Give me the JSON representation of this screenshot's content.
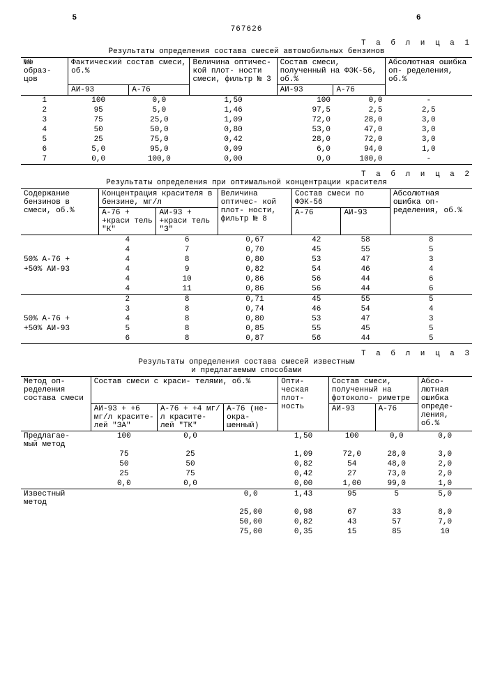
{
  "pageLeft": "5",
  "pageCenter": "767626",
  "pageRight": "6",
  "table1": {
    "label": "Т а б л и ц а  1",
    "caption": "Результаты определения состава смесей автомобильных бензинов",
    "head": {
      "c1": "№№\nобраз-\nцов",
      "c2": "Фактический состав\nсмеси, об.%",
      "c2a": "АИ-93",
      "c2b": "А-76",
      "c3": "Величина\nоптичес-\nкой плот-\nности\nсмеси,\nфильтр № 3",
      "c4": "Состав смеси,\nполученный на\nФЭК-56, об.%",
      "c4a": "АИ-93",
      "c4b": "А-76",
      "c5": "Абсолютная\nошибка оп-\nределения,\nоб.%"
    },
    "rows": [
      [
        "1",
        "100",
        "0,0",
        "1,50",
        "100",
        "0,0",
        "-"
      ],
      [
        "2",
        "95",
        "5,0",
        "1,46",
        "97,5",
        "2,5",
        "2,5"
      ],
      [
        "3",
        "75",
        "25,0",
        "1,09",
        "72,0",
        "28,0",
        "3,0"
      ],
      [
        "4",
        "50",
        "50,0",
        "0,80",
        "53,0",
        "47,0",
        "3,0"
      ],
      [
        "5",
        "25",
        "75,0",
        "0,42",
        "28,0",
        "72,0",
        "3,0"
      ],
      [
        "6",
        "5,0",
        "95,0",
        "0,09",
        "6,0",
        "94,0",
        "1,0"
      ],
      [
        "7",
        "0,0",
        "100,0",
        "0,00",
        "0,0",
        "100,0",
        "-"
      ]
    ]
  },
  "table2": {
    "label": "Т а б л и ц а  2",
    "caption": "Результаты определения при оптимальной концентрации красителя",
    "head": {
      "c1": "Содержание\nбензинов в\nсмеси,\nоб.%",
      "c2": "Концентрация\nкрасителя в\nбензине, мг/л",
      "c2a": "А-76 +\n+краси\nтель\n\"К\"",
      "c2b": "АИ-93 +\n+краси\nтель\n\"З\"",
      "c3": "Величина\nоптичес-\nкой плот-\nности,\nфильтр\n№ 8",
      "c4": "Состав смеси\nпо ФЭК-56",
      "c4a": "А-76",
      "c4b": "АИ-93",
      "c5": "Абсолютная\nошибка оп-\nределения,\nоб.%"
    },
    "groupA_label_1": "50% А-76 +",
    "groupA_label_2": "+50% АИ-93",
    "rowsA": [
      [
        "4",
        "6",
        "0,67",
        "42",
        "58",
        "8"
      ],
      [
        "4",
        "7",
        "0,70",
        "45",
        "55",
        "5"
      ],
      [
        "4",
        "8",
        "0,80",
        "53",
        "47",
        "3"
      ],
      [
        "4",
        "9",
        "0,82",
        "54",
        "46",
        "4"
      ],
      [
        "4",
        "10",
        "0,86",
        "56",
        "44",
        "6"
      ],
      [
        "4",
        "11",
        "0,86",
        "56",
        "44",
        "6"
      ]
    ],
    "rowsB": [
      [
        "2",
        "8",
        "0,71",
        "45",
        "55",
        "5"
      ],
      [
        "3",
        "8",
        "0,74",
        "46",
        "54",
        "4"
      ],
      [
        "4",
        "8",
        "0,80",
        "53",
        "47",
        "3"
      ],
      [
        "5",
        "8",
        "0,85",
        "55",
        "45",
        "5"
      ],
      [
        "6",
        "8",
        "0,87",
        "56",
        "44",
        "5"
      ]
    ]
  },
  "table3": {
    "label": "Т а б л и ц а  3",
    "caption": "Результаты определения состава смесей известным\nи предлагаемым способами",
    "head": {
      "c1": "Метод оп-\nределения\nсостава\nсмеси",
      "c2": "Состав смеси с краси-\nтелями, об.%",
      "c2a": "АИ-93 +\n+6 мг/л\nкрасите-\nлей \"ЗА\"",
      "c2b": "А-76 +\n+4 мг/л\nкрасите-\nлей \"ТК\"",
      "c2c": "А-76\n(не-\nокра-\nшенный)",
      "c3": "Опти-\nческая\nплот-\nность",
      "c4": "Состав смеси,\nполученный\nна фотоколо-\nриметре",
      "c4a": "АИ-93",
      "c4b": "А-76",
      "c5": "Абсо-\nлютная\nошибка\nопреде-\nления,\nоб.%"
    },
    "m1": "Предлагае-\nмый метод",
    "rows1": [
      [
        "100",
        "0,0",
        "",
        "1,50",
        "100",
        "0,0",
        "0,0"
      ],
      [
        "75",
        "25",
        "",
        "1,09",
        "72,0",
        "28,0",
        "3,0"
      ],
      [
        "50",
        "50",
        "",
        "0,82",
        "54",
        "48,0",
        "2,0"
      ],
      [
        "25",
        "75",
        "",
        "0,42",
        "27",
        "73,0",
        "2,0"
      ],
      [
        "0,0",
        "0,0",
        "",
        "0,00",
        "1,00",
        "99,0",
        "1,0"
      ]
    ],
    "m2": "Известный\nметод",
    "rows2": [
      [
        "",
        "",
        "0,0",
        "1,43",
        "95",
        "5",
        "5,0"
      ],
      [
        "",
        "",
        "25,00",
        "0,98",
        "67",
        "33",
        "8,0"
      ],
      [
        "",
        "",
        "50,00",
        "0,82",
        "43",
        "57",
        "7,0"
      ],
      [
        "",
        "",
        "75,00",
        "0,35",
        "15",
        "85",
        "10"
      ]
    ]
  }
}
